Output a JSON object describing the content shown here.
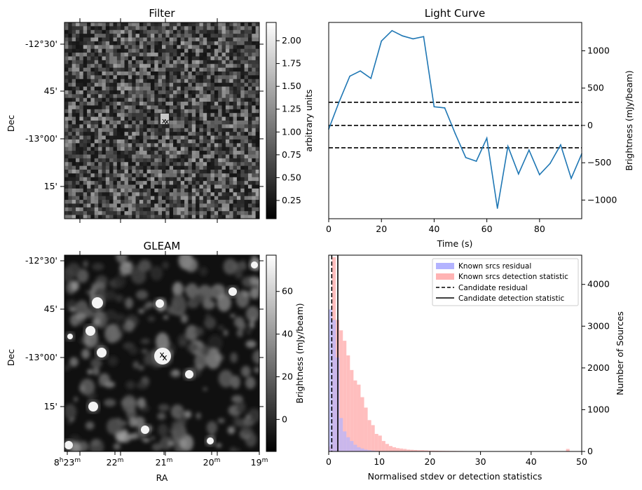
{
  "filter_panel": {
    "title": "Filter",
    "ylabel": "Dec",
    "y_ticks": [
      "-12°30'",
      "45'",
      "-13°00'",
      "15'"
    ],
    "colorbar_label": "arbitrary units",
    "colorbar_ticks": [
      "2.00",
      "1.75",
      "1.50",
      "1.25",
      "1.00",
      "0.75",
      "0.50",
      "0.25"
    ],
    "colorbar_range": [
      0.05,
      2.2
    ],
    "colormap": "gray"
  },
  "gleam_panel": {
    "title": "GLEAM",
    "ylabel": "Dec",
    "xlabel": "RA",
    "y_ticks": [
      "-12°30'",
      "45'",
      "-13°00'",
      "15'"
    ],
    "x_ticks": [
      "8h23m",
      "22m",
      "21m",
      "20m",
      "19m"
    ],
    "colorbar_label": "Brightness (mJy/beam)",
    "colorbar_ticks": [
      "60",
      "40",
      "20",
      "0"
    ],
    "colorbar_range": [
      -15,
      77
    ],
    "colormap": "gray"
  },
  "markers": {
    "red_color": "#ff0000",
    "blue_color": "#0000ff",
    "marker": "x"
  },
  "chart_data": [
    {
      "type": "line",
      "title": "Light Curve",
      "xlabel": "Time (s)",
      "ylabel": "Brightness (mJy/beam)",
      "xlim": [
        0,
        96
      ],
      "ylim": [
        -1250,
        1380
      ],
      "x_ticks": [
        0,
        20,
        40,
        60,
        80
      ],
      "y_ticks": [
        1000,
        500,
        0,
        -500,
        -1000
      ],
      "y_axis_side": "right",
      "line_color": "#1f77b4",
      "x": [
        0,
        4,
        8,
        12,
        16,
        20,
        24,
        28,
        32,
        36,
        40,
        44,
        48,
        52,
        56,
        60,
        64,
        68,
        72,
        76,
        80,
        84,
        88,
        92,
        96
      ],
      "y": [
        -50,
        320,
        660,
        730,
        630,
        1130,
        1270,
        1200,
        1160,
        1190,
        250,
        235,
        -110,
        -430,
        -480,
        -170,
        -1110,
        -280,
        -650,
        -330,
        -660,
        -510,
        -260,
        -710,
        -380
      ],
      "hlines": [
        310,
        0,
        -300
      ],
      "hline_style": "dashed"
    },
    {
      "type": "histogram",
      "xlabel": "Normalised stdev or detection statistics",
      "ylabel": "Number of Sources",
      "xlim": [
        0,
        50
      ],
      "ylim": [
        0,
        4700
      ],
      "x_ticks": [
        0,
        10,
        20,
        30,
        40,
        50
      ],
      "y_ticks": [
        0,
        1000,
        2000,
        3000,
        4000
      ],
      "y_axis_side": "right",
      "legend_position": "top-right",
      "bin_width": 0.7,
      "series": [
        {
          "name": "Known srcs residual",
          "color": "#b3b3ff",
          "values": [
            3400,
            3150,
            2250,
            800,
            480,
            340,
            250,
            160,
            100,
            70,
            45,
            30,
            20,
            12,
            6,
            3
          ]
        },
        {
          "name": "Known srcs detection statistic",
          "color": "#ffb3b3",
          "values": [
            120,
            4650,
            3150,
            2900,
            2650,
            2300,
            1950,
            1700,
            1600,
            1300,
            1050,
            750,
            630,
            420,
            380,
            250,
            180,
            130,
            100,
            80,
            70,
            60,
            45,
            40,
            35,
            30,
            30,
            25,
            20,
            20,
            18,
            16,
            15,
            14,
            12,
            12,
            10,
            10,
            9,
            8,
            8,
            7,
            7,
            6,
            6,
            5,
            5,
            5,
            4,
            4,
            4,
            3,
            3,
            3,
            3,
            2,
            2,
            2,
            2,
            2,
            2,
            2,
            1,
            1,
            1,
            1,
            1,
            60,
            1,
            1,
            1
          ]
        }
      ],
      "vlines": [
        {
          "name": "Candidate residual",
          "x": 0.6,
          "style": "dashed"
        },
        {
          "name": "Candidate detection statistic",
          "x": 1.8,
          "style": "solid"
        }
      ]
    }
  ]
}
